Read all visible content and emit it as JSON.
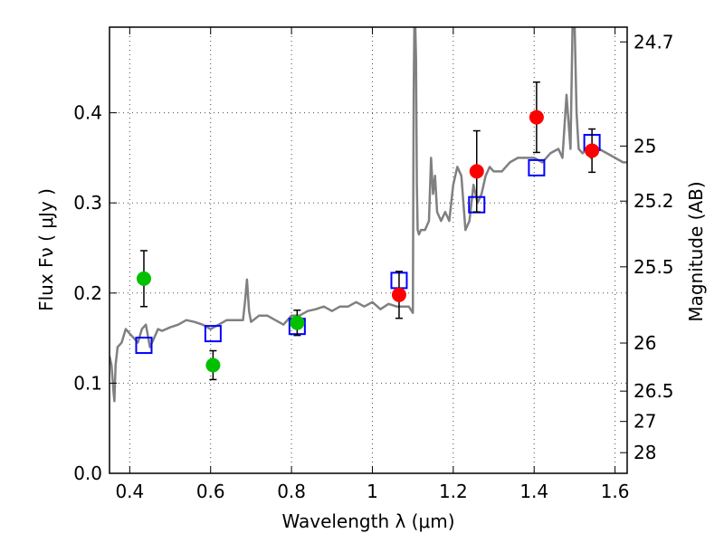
{
  "chart_data": {
    "type": "scatter",
    "xlabel": "Wavelength  λ (μm)",
    "ylabel": "Flux  Fν  ( μJy )",
    "ylabel_right": "Magnitude (AB)",
    "xlim": [
      0.35,
      1.63
    ],
    "ylim": [
      0.0,
      0.495
    ],
    "grid": true,
    "x_ticks": [
      0.4,
      0.6,
      0.8,
      1.0,
      1.2,
      1.4,
      1.6
    ],
    "x_tick_labels": [
      "0.4",
      "0.6",
      "0.8",
      "1",
      "1.2",
      "1.4",
      "1.6"
    ],
    "y_ticks": [
      0.0,
      0.1,
      0.2,
      0.3,
      0.4
    ],
    "y_tick_labels": [
      "0.0",
      "0.1",
      "0.2",
      "0.3",
      "0.4"
    ],
    "mag_ticks": [
      "24.7",
      "25",
      "25.2",
      "25.5",
      "26",
      "26.5",
      "27",
      "28"
    ],
    "colors": {
      "spectrum": "#808080",
      "optical_points": "#00c000",
      "nir_points": "#ff0000",
      "model_squares": "#0000ff",
      "errorbar": "#000000"
    },
    "series": [
      {
        "marker": "circle-green",
        "x": [
          0.435,
          0.606,
          0.814
        ],
        "y": [
          0.216,
          0.12,
          0.167
        ],
        "err": [
          0.031,
          0.016,
          0.014
        ]
      },
      {
        "marker": "circle-red",
        "x": [
          1.066,
          1.258,
          1.406,
          1.543
        ],
        "y": [
          0.198,
          0.335,
          0.395,
          0.358
        ],
        "err": [
          0.026,
          0.045,
          0.039,
          0.024
        ]
      },
      {
        "marker": "square-blue",
        "x": [
          0.435,
          0.606,
          0.814,
          1.066,
          1.258,
          1.406,
          1.543
        ],
        "y": [
          0.142,
          0.155,
          0.163,
          0.214,
          0.298,
          0.339,
          0.367
        ]
      },
      {
        "marker": "line-gray",
        "x": [
          0.35,
          0.355,
          0.36,
          0.362,
          0.365,
          0.37,
          0.38,
          0.39,
          0.4,
          0.41,
          0.42,
          0.43,
          0.44,
          0.45,
          0.46,
          0.47,
          0.48,
          0.5,
          0.52,
          0.54,
          0.56,
          0.58,
          0.6,
          0.62,
          0.64,
          0.66,
          0.68,
          0.685,
          0.69,
          0.695,
          0.7,
          0.72,
          0.74,
          0.76,
          0.78,
          0.8,
          0.82,
          0.84,
          0.86,
          0.88,
          0.9,
          0.92,
          0.94,
          0.96,
          0.98,
          1.0,
          1.02,
          1.04,
          1.06,
          1.08,
          1.09,
          1.1,
          1.102,
          1.104,
          1.106,
          1.108,
          1.11,
          1.112,
          1.115,
          1.12,
          1.13,
          1.14,
          1.145,
          1.15,
          1.155,
          1.16,
          1.17,
          1.18,
          1.19,
          1.2,
          1.21,
          1.22,
          1.23,
          1.24,
          1.25,
          1.26,
          1.27,
          1.28,
          1.29,
          1.3,
          1.32,
          1.34,
          1.36,
          1.38,
          1.4,
          1.42,
          1.44,
          1.46,
          1.47,
          1.48,
          1.49,
          1.495,
          1.5,
          1.505,
          1.51,
          1.52,
          1.53,
          1.54,
          1.55,
          1.56,
          1.58,
          1.6,
          1.62,
          1.63
        ],
        "y": [
          0.13,
          0.12,
          0.09,
          0.08,
          0.12,
          0.14,
          0.145,
          0.16,
          0.155,
          0.15,
          0.145,
          0.16,
          0.165,
          0.14,
          0.15,
          0.16,
          0.158,
          0.162,
          0.165,
          0.17,
          0.168,
          0.165,
          0.16,
          0.165,
          0.17,
          0.17,
          0.17,
          0.19,
          0.215,
          0.18,
          0.168,
          0.175,
          0.175,
          0.17,
          0.165,
          0.175,
          0.175,
          0.18,
          0.182,
          0.185,
          0.18,
          0.185,
          0.185,
          0.19,
          0.185,
          0.19,
          0.182,
          0.188,
          0.185,
          0.185,
          0.185,
          0.178,
          0.42,
          0.5,
          0.5,
          0.46,
          0.32,
          0.27,
          0.265,
          0.27,
          0.27,
          0.28,
          0.35,
          0.31,
          0.33,
          0.29,
          0.28,
          0.29,
          0.28,
          0.32,
          0.34,
          0.33,
          0.27,
          0.28,
          0.32,
          0.3,
          0.31,
          0.33,
          0.34,
          0.335,
          0.335,
          0.345,
          0.35,
          0.35,
          0.35,
          0.345,
          0.355,
          0.36,
          0.35,
          0.42,
          0.36,
          0.5,
          0.5,
          0.4,
          0.36,
          0.355,
          0.36,
          0.35,
          0.355,
          0.36,
          0.355,
          0.35,
          0.345,
          0.345
        ]
      }
    ]
  }
}
